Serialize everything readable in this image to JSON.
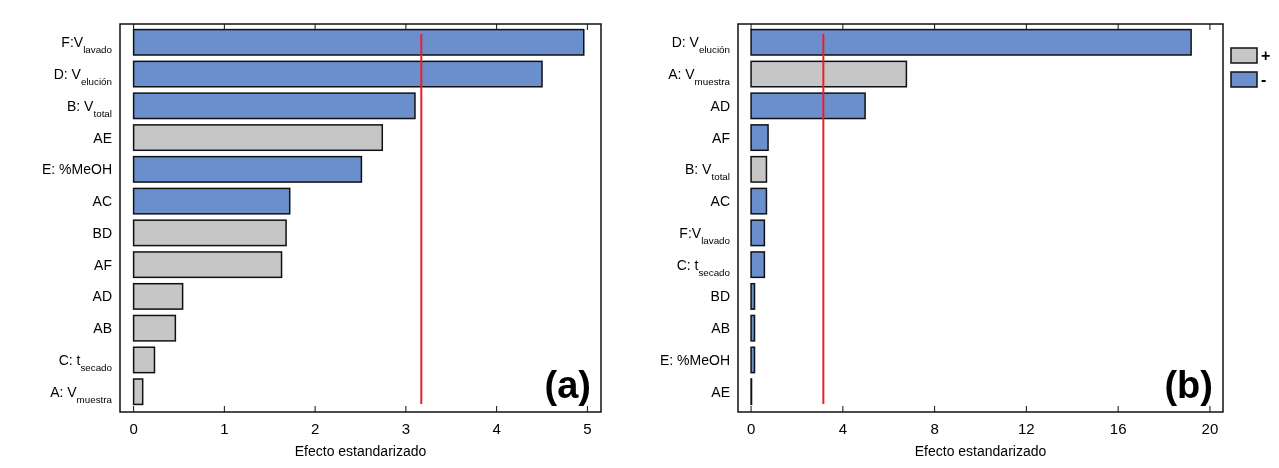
{
  "chart_data": [
    {
      "type": "bar",
      "orientation": "horizontal",
      "xlabel": "Efecto estandarizado",
      "categories": [
        "F:V$_{lavado}$",
        "D: V$_{elución}$",
        "B: V$_{total}$",
        "AE",
        "E: %MeOH",
        "AC",
        "BD",
        "AF",
        "AD",
        "AB",
        "C: t$_{secado}$",
        "A: V$_{muestra}$"
      ],
      "values": [
        4.96,
        4.5,
        3.1,
        2.74,
        2.51,
        1.72,
        1.68,
        1.63,
        0.54,
        0.46,
        0.23,
        0.1
      ],
      "colors": [
        "#6b8fcc",
        "#6b8fcc",
        "#6b8fcc",
        "#c6c6c6",
        "#6b8fcc",
        "#6b8fcc",
        "#c6c6c6",
        "#c6c6c6",
        "#c6c6c6",
        "#c6c6c6",
        "#c6c6c6",
        "#c6c6c6"
      ],
      "xlim": [
        -0.15,
        5.15
      ],
      "xticks": [
        0,
        1,
        2,
        3,
        4,
        5
      ],
      "ref_lines": [
        {
          "axis": "x",
          "value": 3.17,
          "color": "#e8202a"
        }
      ],
      "annotations": [
        "(a)"
      ],
      "legend": false
    },
    {
      "type": "bar",
      "orientation": "horizontal",
      "xlabel": "Efecto estandarizado",
      "categories": [
        "D: V$_{elución}$",
        "A: V$_{muestra}$",
        "AD",
        "AF",
        "B: V$_{total}$",
        "AC",
        "F:V$_{lavado}$",
        "C: t$_{secado}$",
        "BD",
        "AB",
        "E: %MeOH",
        "AE"
      ],
      "series": [
        {
          "name": "+",
          "color": "#c6c6c6",
          "values": [
            null,
            6.77,
            null,
            null,
            0.67,
            null,
            null,
            null,
            null,
            null,
            null,
            null
          ]
        },
        {
          "name": "-",
          "color": "#6b8fcc",
          "values": [
            19.18,
            null,
            4.97,
            0.74,
            null,
            0.67,
            0.58,
            0.58,
            0.15,
            0.15,
            0.15,
            0.02
          ]
        }
      ],
      "xlim": [
        -0.57,
        20.57
      ],
      "xticks": [
        0,
        4,
        8,
        12,
        16,
        20
      ],
      "ref_lines": [
        {
          "axis": "x",
          "value": 3.15,
          "color": "#e8202a"
        }
      ],
      "annotations": [
        "(b)"
      ],
      "legend": "top right"
    }
  ]
}
